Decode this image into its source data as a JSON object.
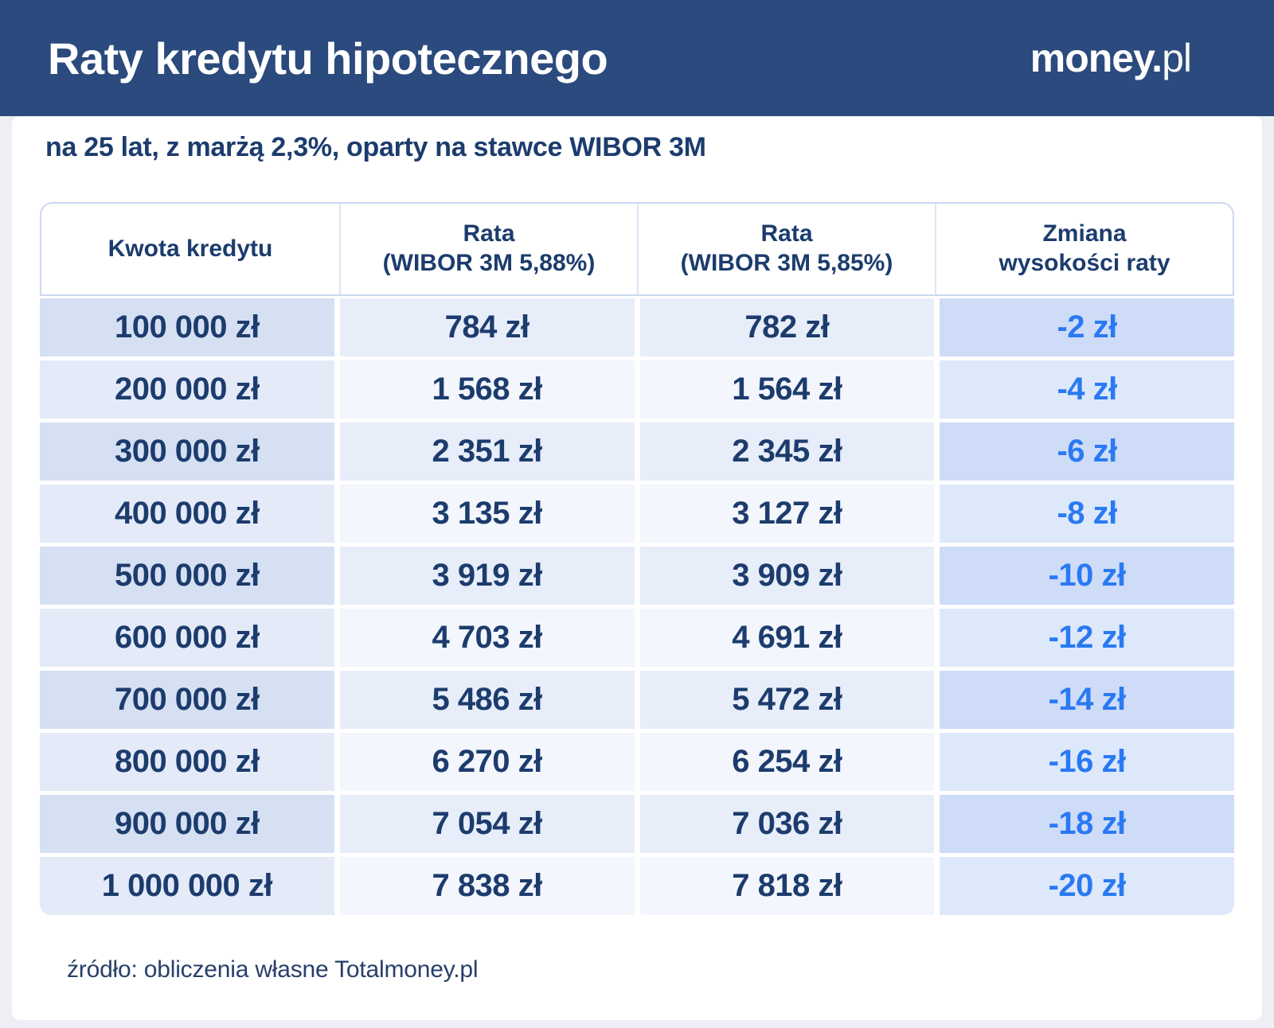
{
  "header": {
    "title": "Raty kredytu hipotecznego",
    "logo_bold": "money.",
    "logo_light": "pl"
  },
  "subtitle": "na 25 lat, z marżą 2,3%, oparty na stawce WIBOR 3M",
  "table": {
    "header_cells": [
      {
        "lines": [
          "Kwota kredytu"
        ]
      },
      {
        "lines": [
          "Rata",
          "(WIBOR 3M 5,88%)"
        ]
      },
      {
        "lines": [
          "Rata",
          "(WIBOR 3M 5,85%)"
        ]
      },
      {
        "lines": [
          "Zmiana",
          "wysokości raty"
        ]
      }
    ]
  },
  "footer": {
    "source": "źródło: obliczenia własne Totalmoney.pl"
  },
  "colors": {
    "topbar_navy": "#2B4A7D",
    "text_navy": "#1C3C6D",
    "accent_blue": "#2A79F3",
    "header_border": "#CBD9EF",
    "row_odd_col1": "#D6E0F3",
    "row_odd_col23": "#E7EDF9",
    "row_odd_col4": "#CEDCF8",
    "row_even_col1": "#E4EAF8",
    "row_even_col23": "#F3F6FC",
    "row_even_col4": "#DDE8FB",
    "page_background": "#EDEFF4",
    "panel_background": "#FFFFFF"
  },
  "chart_data": {
    "type": "table",
    "title": "Raty kredytu hipotecznego",
    "subtitle": "na 25 lat, z marżą 2,3%, oparty na stawce WIBOR 3M",
    "columns": [
      "Kwota kredytu",
      "Rata (WIBOR 3M 5,88%)",
      "Rata (WIBOR 3M 5,85%)",
      "Zmiana wysokości raty"
    ],
    "rows": [
      [
        "100 000 zł",
        "784 zł",
        "782 zł",
        "-2 zł"
      ],
      [
        "200 000 zł",
        "1 568 zł",
        "1 564 zł",
        "-4 zł"
      ],
      [
        "300 000 zł",
        "2 351 zł",
        "2 345 zł",
        "-6 zł"
      ],
      [
        "400 000 zł",
        "3 135 zł",
        "3 127 zł",
        "-8 zł"
      ],
      [
        "500 000 zł",
        "3 919 zł",
        "3 909 zł",
        "-10 zł"
      ],
      [
        "600 000 zł",
        "4 703 zł",
        "4 691 zł",
        "-12 zł"
      ],
      [
        "700 000 zł",
        "5 486 zł",
        "5 472 zł",
        "-14 zł"
      ],
      [
        "800 000 zł",
        "6 270 zł",
        "6 254 zł",
        "-16 zł"
      ],
      [
        "900 000 zł",
        "7 054 zł",
        "7 036 zł",
        "-18 zł"
      ],
      [
        "1 000 000 zł",
        "7 838 zł",
        "7 818 zł",
        "-20 zł"
      ]
    ],
    "numeric": {
      "loan_amounts_pln": [
        100000,
        200000,
        300000,
        400000,
        500000,
        600000,
        700000,
        800000,
        900000,
        1000000
      ],
      "installment_wibor_5_88_pln": [
        784,
        1568,
        2351,
        3135,
        3919,
        4703,
        5486,
        6270,
        7054,
        7838
      ],
      "installment_wibor_5_85_pln": [
        782,
        1564,
        2345,
        3127,
        3909,
        4691,
        5472,
        6254,
        7036,
        7818
      ],
      "installment_change_pln": [
        -2,
        -4,
        -6,
        -8,
        -10,
        -12,
        -14,
        -16,
        -18,
        -20
      ]
    },
    "source": "źródło: obliczenia własne Totalmoney.pl"
  }
}
